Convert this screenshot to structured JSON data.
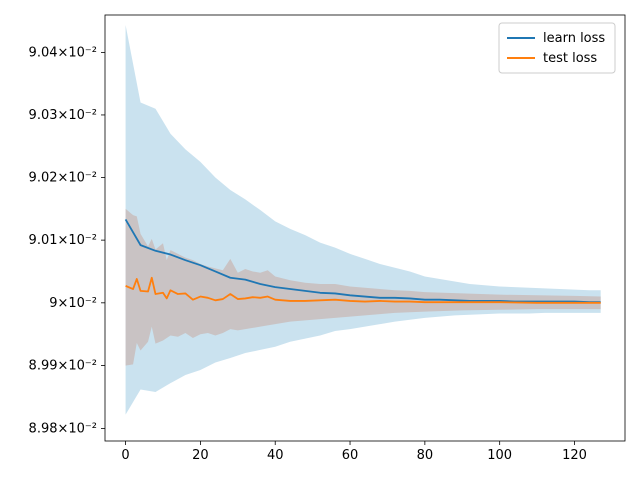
{
  "chart_data": {
    "type": "line",
    "title": "",
    "xlabel": "",
    "ylabel": "",
    "xlim": [
      -5.5,
      133.5
    ],
    "ylim": [
      8.978,
      9.046
    ],
    "y_scale": "log",
    "grid": false,
    "legend_position": "top-right",
    "x_ticks": [
      0,
      20,
      40,
      60,
      80,
      100,
      120
    ],
    "y_ticks": [
      {
        "value": 8.98,
        "label": "8.98×10⁻²"
      },
      {
        "value": 8.99,
        "label": "8.99×10⁻²"
      },
      {
        "value": 9.0,
        "label": "9×10⁻²"
      },
      {
        "value": 9.01,
        "label": "9.01×10⁻²"
      },
      {
        "value": 9.02,
        "label": "9.02×10⁻²"
      },
      {
        "value": 9.03,
        "label": "9.03×10⁻²"
      },
      {
        "value": 9.04,
        "label": "9.04×10⁻²"
      }
    ],
    "y_unit_note": "y values are in units of 10^-2",
    "series": [
      {
        "name": "learn loss",
        "color": "#1f77b4",
        "band_color": "#9ecae1",
        "x": [
          0,
          4,
          8,
          12,
          16,
          20,
          24,
          28,
          32,
          36,
          40,
          44,
          48,
          52,
          56,
          60,
          64,
          68,
          72,
          76,
          80,
          84,
          88,
          92,
          96,
          100,
          104,
          108,
          112,
          116,
          120,
          124,
          127
        ],
        "mean": [
          9.0133,
          9.0092,
          9.0083,
          9.0077,
          9.0068,
          9.006,
          9.005,
          9.004,
          9.0037,
          9.003,
          9.0025,
          9.0022,
          9.0019,
          9.0016,
          9.0015,
          9.0012,
          9.001,
          9.0008,
          9.0008,
          9.0007,
          9.0005,
          9.0005,
          9.0004,
          9.0003,
          9.0003,
          9.0003,
          9.0002,
          9.0002,
          9.0002,
          9.0002,
          9.0002,
          9.0001,
          9.0001
        ],
        "upper": [
          9.0444,
          9.032,
          9.031,
          9.027,
          9.0245,
          9.0225,
          9.02,
          9.018,
          9.0165,
          9.0148,
          9.013,
          9.0118,
          9.0108,
          9.0096,
          9.0088,
          9.0078,
          9.007,
          9.0062,
          9.0056,
          9.005,
          9.0042,
          9.0038,
          9.0034,
          9.003,
          9.0028,
          9.0026,
          9.0025,
          9.0024,
          9.0023,
          9.0022,
          9.0021,
          9.002,
          9.002
        ],
        "lower": [
          8.9822,
          8.9862,
          8.9858,
          8.9872,
          8.9885,
          8.9893,
          8.9905,
          8.9912,
          8.992,
          8.9925,
          8.993,
          8.9938,
          8.9943,
          8.9948,
          8.9955,
          8.9958,
          8.9962,
          8.9966,
          8.997,
          8.9973,
          8.9976,
          8.9978,
          8.998,
          8.9981,
          8.9982,
          8.9983,
          8.9983,
          8.9983,
          8.9984,
          8.9984,
          8.9984,
          8.9984,
          8.9984
        ]
      },
      {
        "name": "test loss",
        "color": "#ff7f0e",
        "band_color": "#c8a9a0",
        "x": [
          0,
          2,
          3,
          4,
          6,
          7,
          8,
          10,
          11,
          12,
          14,
          16,
          18,
          20,
          22,
          24,
          26,
          28,
          30,
          32,
          34,
          36,
          38,
          40,
          44,
          48,
          52,
          56,
          60,
          64,
          68,
          72,
          76,
          80,
          90,
          100,
          110,
          120,
          127
        ],
        "mean": [
          9.0027,
          9.0022,
          9.0038,
          9.0019,
          9.0018,
          9.004,
          9.0014,
          9.0016,
          9.0007,
          9.002,
          9.0014,
          9.0015,
          9.0005,
          9.001,
          9.0008,
          9.0004,
          9.0006,
          9.0014,
          9.0006,
          9.0007,
          9.0009,
          9.0008,
          9.001,
          9.0005,
          9.0003,
          9.0003,
          9.0004,
          9.0005,
          9.0003,
          9.0002,
          9.0003,
          9.0002,
          9.0002,
          9.0001,
          9.0001,
          9.0001,
          9.0,
          9.0,
          9.0
        ],
        "upper": [
          9.015,
          9.014,
          9.0138,
          9.011,
          9.009,
          9.0102,
          9.0085,
          9.0095,
          9.0068,
          9.0084,
          9.0078,
          9.0072,
          9.0068,
          9.0062,
          9.0058,
          9.0055,
          9.0052,
          9.007,
          9.0048,
          9.0054,
          9.005,
          9.0048,
          9.0052,
          9.0042,
          9.0036,
          9.0032,
          9.003,
          9.003,
          9.0026,
          9.0024,
          9.0022,
          9.002,
          9.0019,
          9.0017,
          9.0015,
          9.0013,
          9.0012,
          9.0011,
          9.001
        ],
        "lower": [
          8.99,
          8.9902,
          8.9936,
          8.9924,
          8.9938,
          8.9962,
          8.9935,
          8.994,
          8.9944,
          8.9948,
          8.9946,
          8.9952,
          8.9944,
          8.995,
          8.9952,
          8.9948,
          8.9952,
          8.9958,
          8.9956,
          8.9958,
          8.996,
          8.9962,
          8.9964,
          8.9966,
          8.997,
          8.9972,
          8.9974,
          8.9976,
          8.9978,
          8.998,
          8.9982,
          8.9984,
          8.9985,
          8.9986,
          8.9988,
          8.9989,
          8.999,
          8.999,
          8.999
        ]
      }
    ]
  }
}
